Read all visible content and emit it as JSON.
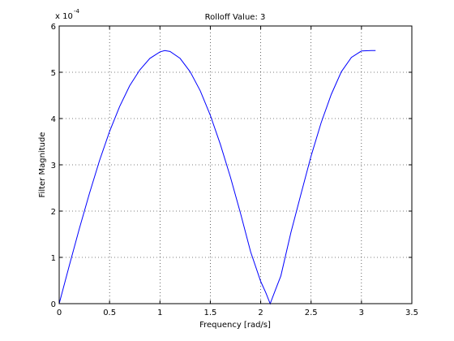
{
  "chart_data": {
    "type": "line",
    "title": "Rolloff Value: 3",
    "xlabel": "Frequency [rad/s]",
    "ylabel": "Filter Magnitude",
    "xlim": [
      0,
      3.5
    ],
    "ylim": [
      0,
      6
    ],
    "y_scale_label": "x 10",
    "y_scale_exponent": "-4",
    "grid": true,
    "x_ticks": [
      "0",
      "0.5",
      "1",
      "1.5",
      "2",
      "2.5",
      "3",
      "3.5"
    ],
    "y_ticks": [
      "0",
      "1",
      "2",
      "3",
      "4",
      "5",
      "6"
    ],
    "series": [
      {
        "color": "#0000ff",
        "x": [
          0,
          0.1,
          0.2,
          0.3,
          0.4,
          0.5,
          0.6,
          0.7,
          0.8,
          0.9,
          1.0,
          1.047,
          1.1,
          1.2,
          1.3,
          1.4,
          1.5,
          1.6,
          1.7,
          1.8,
          1.9,
          2.0,
          2.05,
          2.094,
          2.15,
          2.2,
          2.3,
          2.4,
          2.5,
          2.6,
          2.7,
          2.8,
          2.9,
          3.0,
          3.1,
          3.14
        ],
        "y": [
          0,
          0.82,
          1.62,
          2.38,
          3.09,
          3.72,
          4.26,
          4.71,
          5.05,
          5.3,
          5.44,
          5.47,
          5.45,
          5.3,
          5.01,
          4.6,
          4.07,
          3.44,
          2.73,
          1.95,
          1.12,
          0.48,
          0.24,
          0.0,
          0.32,
          0.6,
          1.54,
          2.37,
          3.19,
          3.91,
          4.52,
          5.01,
          5.32,
          5.46,
          5.47,
          5.47
        ]
      }
    ]
  }
}
